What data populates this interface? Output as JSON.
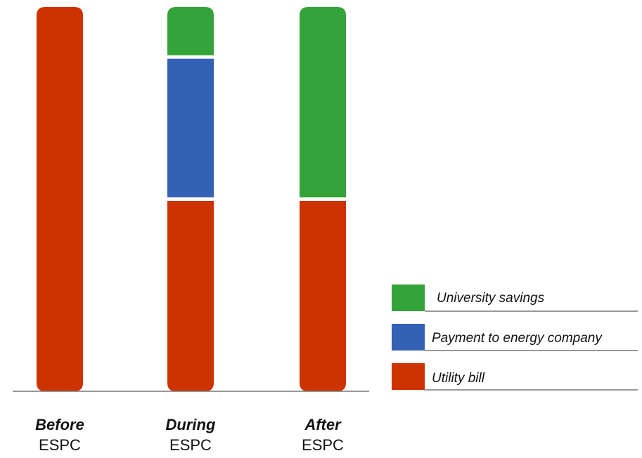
{
  "chart_data": {
    "type": "bar",
    "stacked": true,
    "categories": [
      {
        "line1": "Before",
        "line2": "ESPC"
      },
      {
        "line1": "During",
        "line2": "ESPC"
      },
      {
        "line1": "After",
        "line2": "ESPC"
      }
    ],
    "series": [
      {
        "name": "Utility bill",
        "key": "utility",
        "color": "#cc3300",
        "values": [
          100,
          50,
          50
        ]
      },
      {
        "name": "Payment to energy company",
        "key": "payment",
        "color": "#3361b4",
        "values": [
          0,
          37,
          0
        ]
      },
      {
        "name": "University savings",
        "key": "savings",
        "color": "#33a33a",
        "values": [
          0,
          13,
          50
        ]
      }
    ],
    "ylim": [
      0,
      100
    ],
    "grid": false,
    "legend": {
      "position": "right",
      "order": [
        "savings",
        "payment",
        "utility"
      ]
    },
    "axis_color": "#777777",
    "gap_color": "#ffffff"
  }
}
